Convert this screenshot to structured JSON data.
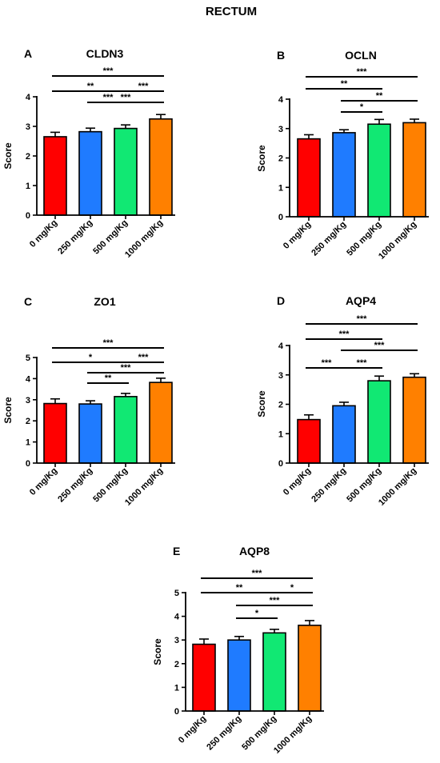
{
  "figure": {
    "title": "RECTUM"
  },
  "colors": {
    "bars": [
      "#ff0000",
      "#1f7bff",
      "#11e873",
      "#ff8000"
    ],
    "axis": "#000000"
  },
  "chart_data": [
    {
      "panel": "A",
      "type": "bar",
      "title": "CLDN3",
      "ylabel": "Score",
      "categories": [
        "0 mg/Kg",
        "250 mg/Kg",
        "500 mg/Kg",
        "1000 mg/Kg"
      ],
      "values": [
        2.65,
        2.82,
        2.93,
        3.25
      ],
      "errors": [
        0.15,
        0.12,
        0.12,
        0.15
      ],
      "ylim": [
        0,
        4
      ],
      "yticks": [
        0,
        1,
        2,
        3,
        4
      ],
      "significance": [
        {
          "from": 0,
          "to": 3,
          "label": "***"
        },
        {
          "from": 0,
          "to": 2,
          "label": "**"
        },
        {
          "from": 2,
          "to": 3,
          "label": "***"
        },
        {
          "from": 1,
          "to": 2,
          "label": "***"
        },
        {
          "from": 1,
          "to": 3,
          "label": "***"
        }
      ]
    },
    {
      "panel": "B",
      "type": "bar",
      "title": "OCLN",
      "ylabel": "Score",
      "categories": [
        "0 mg/Kg",
        "250 mg/Kg",
        "500 mg/Kg",
        "1000 mg/Kg"
      ],
      "values": [
        2.65,
        2.86,
        3.15,
        3.2
      ],
      "errors": [
        0.14,
        0.1,
        0.16,
        0.12
      ],
      "ylim": [
        0,
        4
      ],
      "yticks": [
        0,
        1,
        2,
        3,
        4
      ],
      "significance": [
        {
          "from": 0,
          "to": 3,
          "label": "***"
        },
        {
          "from": 0,
          "to": 2,
          "label": "**"
        },
        {
          "from": 1,
          "to": 3,
          "label": "**"
        },
        {
          "from": 1,
          "to": 2,
          "label": "*"
        }
      ]
    },
    {
      "panel": "C",
      "type": "bar",
      "title": "ZO1",
      "ylabel": "Score",
      "categories": [
        "0 mg/Kg",
        "250 mg/Kg",
        "500 mg/Kg",
        "1000 mg/Kg"
      ],
      "values": [
        2.82,
        2.8,
        3.15,
        3.82
      ],
      "errors": [
        0.22,
        0.15,
        0.15,
        0.2
      ],
      "ylim": [
        0,
        5
      ],
      "yticks": [
        0,
        1,
        2,
        3,
        4,
        5
      ],
      "significance": [
        {
          "from": 0,
          "to": 3,
          "label": "***"
        },
        {
          "from": 0,
          "to": 2,
          "label": "*"
        },
        {
          "from": 2,
          "to": 3,
          "label": "***"
        },
        {
          "from": 1,
          "to": 3,
          "label": "***"
        },
        {
          "from": 1,
          "to": 2,
          "label": "**"
        }
      ]
    },
    {
      "panel": "D",
      "type": "bar",
      "title": "AQP4",
      "ylabel": "Score",
      "categories": [
        "0 mg/Kg",
        "250 mg/Kg",
        "500 mg/Kg",
        "1000 mg/Kg"
      ],
      "values": [
        1.48,
        1.95,
        2.8,
        2.92
      ],
      "errors": [
        0.16,
        0.12,
        0.16,
        0.12
      ],
      "ylim": [
        0,
        4
      ],
      "yticks": [
        0,
        1,
        2,
        3,
        4
      ],
      "significance": [
        {
          "from": 0,
          "to": 3,
          "label": "***"
        },
        {
          "from": 0,
          "to": 2,
          "label": "***"
        },
        {
          "from": 1,
          "to": 3,
          "label": "***"
        },
        {
          "from": 0,
          "to": 1,
          "label": "***"
        },
        {
          "from": 1,
          "to": 2,
          "label": "***"
        }
      ]
    },
    {
      "panel": "E",
      "type": "bar",
      "title": "AQP8",
      "ylabel": "Score",
      "categories": [
        "0 mg/Kg",
        "250 mg/Kg",
        "500 mg/Kg",
        "1000 mg/Kg"
      ],
      "values": [
        2.82,
        3.0,
        3.3,
        3.62
      ],
      "errors": [
        0.22,
        0.15,
        0.15,
        0.2
      ],
      "ylim": [
        0,
        5
      ],
      "yticks": [
        0,
        1,
        2,
        3,
        4,
        5
      ],
      "significance": [
        {
          "from": 0,
          "to": 3,
          "label": "***"
        },
        {
          "from": 0,
          "to": 2,
          "label": "**"
        },
        {
          "from": 2,
          "to": 3,
          "label": "*"
        },
        {
          "from": 1,
          "to": 3,
          "label": "***"
        },
        {
          "from": 1,
          "to": 2,
          "label": "*"
        }
      ]
    }
  ]
}
